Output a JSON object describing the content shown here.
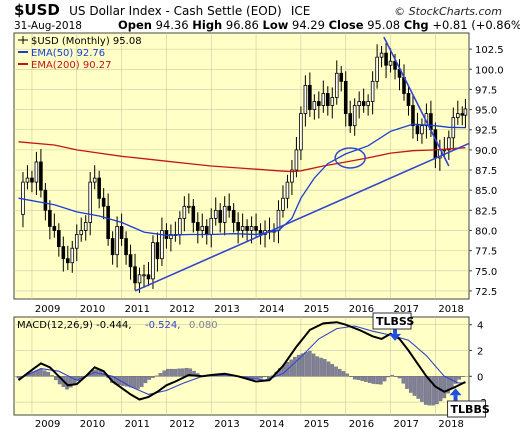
{
  "header": {
    "symbol": "$USD",
    "description": "US Dollar Index - Cash Settle (EOD)",
    "exchange": "ICE",
    "date": "31-Aug-2018",
    "brand": "© StockCharts.com",
    "ohlc": {
      "open_label": "Open",
      "open": "94.36",
      "high_label": "High",
      "high": "96.86",
      "low_label": "Low",
      "low": "94.29",
      "close_label": "Close",
      "close": "95.08",
      "chg_label": "Chg",
      "chg": "+0.81 (+0.86%)"
    }
  },
  "colors": {
    "panel_bg": "#ffffc6",
    "candle": "#000000",
    "ema50": "#1a3dd6",
    "ema200": "#c51616",
    "trendline": "#3345cc",
    "macd_line": "#000000",
    "signal_line": "#3345cc",
    "histogram": "#808099",
    "annotation_arrow": "#1f4fe0"
  },
  "chart_data": [
    {
      "type": "candlestick",
      "title": "$USD (Monthly) 95.08",
      "legend": [
        {
          "name": "$USD (Monthly) 95.08",
          "color": "#000000"
        },
        {
          "name": "EMA(50) 92.76",
          "color": "#1a3dd6"
        },
        {
          "name": "EMA(200) 90.27",
          "color": "#c51616"
        }
      ],
      "legend_position": "top-left",
      "x_ticks": [
        "2009",
        "2010",
        "2011",
        "2012",
        "2013",
        "2014",
        "2015",
        "2016",
        "2017",
        "2018"
      ],
      "y_ticks": [
        72.5,
        75.0,
        77.5,
        80.0,
        82.5,
        85.0,
        87.5,
        90.0,
        92.5,
        95.0,
        97.5,
        100.0,
        102.5
      ],
      "y_tick_labels": [
        "72.5",
        "75.0",
        "77.5",
        "80.0",
        "82.5",
        "85.0",
        "87.5",
        "90.0",
        "92.5",
        "95.0",
        "97.5",
        "100.0",
        "102.5"
      ],
      "xlim": [
        2008.6,
        2018.75
      ],
      "ylim": [
        71.5,
        104.5
      ],
      "grid": true,
      "close_series": [
        [
          2008.7,
          82.0
        ],
        [
          2008.8,
          86.0
        ],
        [
          2008.9,
          86.5
        ],
        [
          2009.0,
          86.0
        ],
        [
          2009.1,
          88.5
        ],
        [
          2009.2,
          85.0
        ],
        [
          2009.3,
          82.5
        ],
        [
          2009.4,
          80.5
        ],
        [
          2009.5,
          80.0
        ],
        [
          2009.6,
          78.0
        ],
        [
          2009.7,
          76.5
        ],
        [
          2009.8,
          76.0
        ],
        [
          2009.9,
          77.8
        ],
        [
          2010.0,
          79.5
        ],
        [
          2010.1,
          80.0
        ],
        [
          2010.2,
          81.0
        ],
        [
          2010.3,
          86.0
        ],
        [
          2010.4,
          86.5
        ],
        [
          2010.5,
          84.0
        ],
        [
          2010.6,
          83.0
        ],
        [
          2010.7,
          79.0
        ],
        [
          2010.8,
          77.0
        ],
        [
          2010.9,
          80.5
        ],
        [
          2011.0,
          79.0
        ],
        [
          2011.1,
          77.0
        ],
        [
          2011.2,
          75.5
        ],
        [
          2011.3,
          73.5
        ],
        [
          2011.4,
          74.5
        ],
        [
          2011.5,
          74.5
        ],
        [
          2011.6,
          74.0
        ],
        [
          2011.7,
          78.5
        ],
        [
          2011.8,
          76.5
        ],
        [
          2011.9,
          80.0
        ],
        [
          2012.0,
          79.0
        ],
        [
          2012.1,
          79.5
        ],
        [
          2012.2,
          79.5
        ],
        [
          2012.3,
          81.5
        ],
        [
          2012.4,
          83.0
        ],
        [
          2012.5,
          83.0
        ],
        [
          2012.6,
          81.0
        ],
        [
          2012.7,
          80.0
        ],
        [
          2012.8,
          80.5
        ],
        [
          2012.9,
          79.5
        ],
        [
          2013.0,
          81.5
        ],
        [
          2013.1,
          82.5
        ],
        [
          2013.2,
          81.0
        ],
        [
          2013.3,
          83.0
        ],
        [
          2013.4,
          82.5
        ],
        [
          2013.5,
          81.0
        ],
        [
          2013.6,
          80.0
        ],
        [
          2013.7,
          80.5
        ],
        [
          2013.8,
          80.0
        ],
        [
          2013.9,
          80.5
        ],
        [
          2014.0,
          80.0
        ],
        [
          2014.1,
          79.5
        ],
        [
          2014.2,
          80.0
        ],
        [
          2014.3,
          79.8
        ],
        [
          2014.4,
          80.0
        ],
        [
          2014.5,
          82.5
        ],
        [
          2014.6,
          84.0
        ],
        [
          2014.7,
          86.0
        ],
        [
          2014.8,
          87.5
        ],
        [
          2014.9,
          90.0
        ],
        [
          2015.0,
          94.5
        ],
        [
          2015.1,
          98.0
        ],
        [
          2015.2,
          95.0
        ],
        [
          2015.3,
          96.0
        ],
        [
          2015.4,
          95.5
        ],
        [
          2015.5,
          97.0
        ],
        [
          2015.6,
          95.5
        ],
        [
          2015.7,
          96.5
        ],
        [
          2015.8,
          99.5
        ],
        [
          2015.9,
          98.5
        ],
        [
          2016.0,
          94.5
        ],
        [
          2016.1,
          93.0
        ],
        [
          2016.2,
          95.5
        ],
        [
          2016.3,
          96.0
        ],
        [
          2016.4,
          95.5
        ],
        [
          2016.5,
          96.0
        ],
        [
          2016.6,
          98.5
        ],
        [
          2016.7,
          101.5
        ],
        [
          2016.8,
          102.0
        ],
        [
          2016.9,
          100.5
        ],
        [
          2017.0,
          101.0
        ],
        [
          2017.1,
          100.0
        ],
        [
          2017.2,
          99.0
        ],
        [
          2017.3,
          97.0
        ],
        [
          2017.4,
          95.5
        ],
        [
          2017.5,
          93.0
        ],
        [
          2017.6,
          92.0
        ],
        [
          2017.7,
          93.0
        ],
        [
          2017.8,
          94.5
        ],
        [
          2017.9,
          92.5
        ],
        [
          2018.0,
          89.0
        ],
        [
          2018.1,
          90.0
        ],
        [
          2018.2,
          90.0
        ],
        [
          2018.3,
          91.5
        ],
        [
          2018.4,
          94.0
        ],
        [
          2018.5,
          94.5
        ],
        [
          2018.6,
          94.3
        ],
        [
          2018.67,
          95.08
        ]
      ],
      "ema50_series": [
        [
          2008.7,
          84.0
        ],
        [
          2009.5,
          83.2
        ],
        [
          2010.0,
          82.3
        ],
        [
          2010.5,
          81.8
        ],
        [
          2011.0,
          81.0
        ],
        [
          2011.5,
          79.8
        ],
        [
          2012.0,
          79.4
        ],
        [
          2012.5,
          79.5
        ],
        [
          2013.0,
          79.5
        ],
        [
          2013.5,
          79.6
        ],
        [
          2014.0,
          79.5
        ],
        [
          2014.5,
          80.0
        ],
        [
          2014.8,
          81.5
        ],
        [
          2015.0,
          84.0
        ],
        [
          2015.3,
          86.5
        ],
        [
          2015.6,
          88.3
        ],
        [
          2016.0,
          89.5
        ],
        [
          2016.5,
          90.5
        ],
        [
          2017.0,
          92.3
        ],
        [
          2017.5,
          93.2
        ],
        [
          2018.0,
          93.0
        ],
        [
          2018.3,
          92.8
        ],
        [
          2018.67,
          92.76
        ]
      ],
      "ema200_series": [
        [
          2008.7,
          91.0
        ],
        [
          2009.5,
          90.6
        ],
        [
          2010.0,
          90.0
        ],
        [
          2010.5,
          89.6
        ],
        [
          2011.0,
          89.2
        ],
        [
          2011.5,
          88.9
        ],
        [
          2012.0,
          88.6
        ],
        [
          2012.5,
          88.3
        ],
        [
          2013.0,
          88.0
        ],
        [
          2013.5,
          87.8
        ],
        [
          2014.0,
          87.6
        ],
        [
          2014.5,
          87.4
        ],
        [
          2014.8,
          87.3
        ],
        [
          2015.0,
          87.4
        ],
        [
          2015.5,
          88.0
        ],
        [
          2016.0,
          88.5
        ],
        [
          2016.5,
          89.0
        ],
        [
          2017.0,
          89.6
        ],
        [
          2017.5,
          89.9
        ],
        [
          2018.0,
          90.0
        ],
        [
          2018.67,
          90.27
        ]
      ],
      "trendlines": [
        {
          "from": [
            2011.3,
            72.5
          ],
          "to": [
            2018.75,
            90.8
          ]
        },
        {
          "from": [
            2016.85,
            104.0
          ],
          "to": [
            2018.3,
            88.0
          ]
        }
      ],
      "annotations": [
        {
          "type": "ellipse",
          "center": [
            2016.1,
            89.0
          ]
        }
      ]
    },
    {
      "type": "line",
      "title": "MACD(12,26,9) -0.444, -0.524, 0.080",
      "legend": [
        {
          "name": "MACD(12,26,9) -0.444",
          "color": "#000000"
        },
        {
          "name": "-0.524",
          "color": "#3345cc"
        },
        {
          "name": "0.080",
          "color": "#808099"
        }
      ],
      "legend_position": "top-left",
      "x_ticks": [
        "2009",
        "2010",
        "2011",
        "2012",
        "2013",
        "2014",
        "2015",
        "2016",
        "2017",
        "2018"
      ],
      "y_ticks": [
        -2,
        0,
        2,
        4
      ],
      "y_tick_labels": [
        "-2",
        "0",
        "2",
        "4"
      ],
      "xlim": [
        2008.6,
        2018.75
      ],
      "ylim": [
        -3.0,
        4.6
      ],
      "macd_series": [
        [
          2008.7,
          -0.3
        ],
        [
          2009.0,
          0.5
        ],
        [
          2009.2,
          1.0
        ],
        [
          2009.4,
          0.7
        ],
        [
          2009.6,
          0.0
        ],
        [
          2009.8,
          -0.7
        ],
        [
          2010.0,
          -0.6
        ],
        [
          2010.2,
          0.0
        ],
        [
          2010.4,
          0.7
        ],
        [
          2010.6,
          0.4
        ],
        [
          2010.8,
          -0.4
        ],
        [
          2011.0,
          -0.9
        ],
        [
          2011.2,
          -1.4
        ],
        [
          2011.4,
          -1.8
        ],
        [
          2011.6,
          -1.6
        ],
        [
          2011.8,
          -1.2
        ],
        [
          2012.0,
          -0.7
        ],
        [
          2012.2,
          -0.4
        ],
        [
          2012.5,
          0.1
        ],
        [
          2012.8,
          0.0
        ],
        [
          2013.0,
          0.1
        ],
        [
          2013.3,
          0.2
        ],
        [
          2013.6,
          0.0
        ],
        [
          2014.0,
          -0.4
        ],
        [
          2014.3,
          -0.3
        ],
        [
          2014.6,
          0.8
        ],
        [
          2014.9,
          2.3
        ],
        [
          2015.2,
          3.6
        ],
        [
          2015.5,
          4.1
        ],
        [
          2015.8,
          4.2
        ],
        [
          2016.0,
          4.0
        ],
        [
          2016.3,
          3.6
        ],
        [
          2016.6,
          3.1
        ],
        [
          2016.8,
          2.9
        ],
        [
          2017.0,
          3.3
        ],
        [
          2017.2,
          2.9
        ],
        [
          2017.4,
          2.0
        ],
        [
          2017.6,
          1.0
        ],
        [
          2017.8,
          0.0
        ],
        [
          2018.0,
          -0.8
        ],
        [
          2018.2,
          -1.2
        ],
        [
          2018.4,
          -0.9
        ],
        [
          2018.67,
          -0.444
        ]
      ],
      "signal_series": [
        [
          2008.7,
          -0.2
        ],
        [
          2009.2,
          0.6
        ],
        [
          2009.6,
          0.4
        ],
        [
          2010.0,
          -0.3
        ],
        [
          2010.4,
          0.3
        ],
        [
          2010.8,
          0.0
        ],
        [
          2011.2,
          -0.8
        ],
        [
          2011.6,
          -1.4
        ],
        [
          2012.0,
          -1.1
        ],
        [
          2012.4,
          -0.5
        ],
        [
          2012.8,
          0.0
        ],
        [
          2013.3,
          0.1
        ],
        [
          2013.8,
          -0.1
        ],
        [
          2014.2,
          -0.3
        ],
        [
          2014.6,
          0.2
        ],
        [
          2015.0,
          1.5
        ],
        [
          2015.4,
          2.9
        ],
        [
          2015.8,
          3.7
        ],
        [
          2016.2,
          3.9
        ],
        [
          2016.6,
          3.5
        ],
        [
          2017.0,
          3.2
        ],
        [
          2017.4,
          2.8
        ],
        [
          2017.8,
          1.6
        ],
        [
          2018.2,
          0.0
        ],
        [
          2018.5,
          -0.5
        ],
        [
          2018.67,
          -0.524
        ]
      ],
      "annotations": [
        {
          "type": "arrow",
          "label": "TLBSS",
          "at": [
            2017.1,
            2.9
          ],
          "direction": "down"
        },
        {
          "type": "arrow",
          "label": "TLBBS",
          "at": [
            2018.45,
            -1.0
          ],
          "direction": "up"
        }
      ]
    }
  ]
}
